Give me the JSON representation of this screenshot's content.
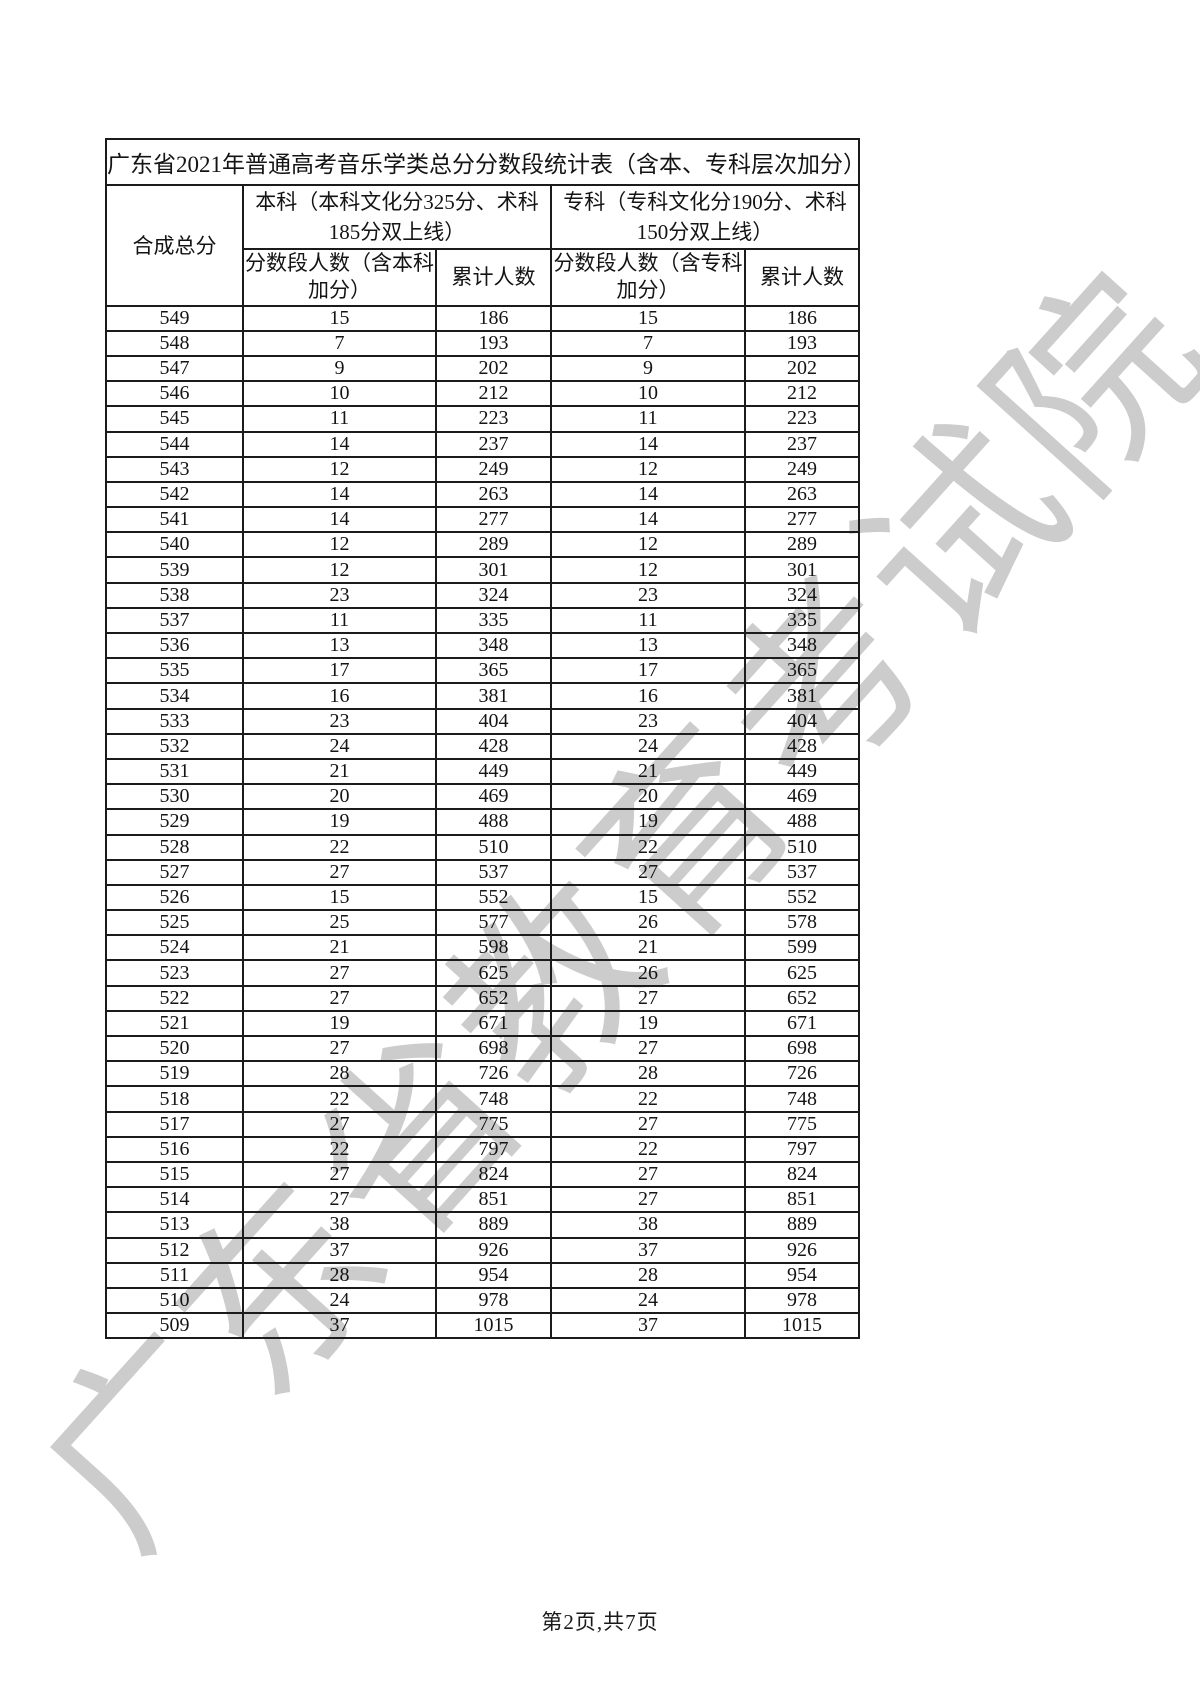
{
  "watermark_text": "广东省教育考试院",
  "footer": {
    "page_label": "第2页,共7页"
  },
  "table": {
    "title": "广东省2021年普通高考音乐学类总分分数段统计表（含本、专科层次加分）",
    "header": {
      "score_col": "合成总分",
      "ben_group": "本科（本科文化分325分、术科185分双上线）",
      "zhuan_group": "专科（专科文化分190分、术科150分双上线）",
      "ben_seg": "分数段人数（含本科加分）",
      "ben_cum": "累计人数",
      "zhuan_seg": "分数段人数（含专科加分）",
      "zhuan_cum": "累计人数"
    },
    "columns_meaning": [
      "合成总分",
      "本科分数段人数(含本科加分)",
      "本科累计人数",
      "专科分数段人数(含专科加分)",
      "专科累计人数"
    ],
    "rows": [
      [
        549,
        15,
        186,
        15,
        186
      ],
      [
        548,
        7,
        193,
        7,
        193
      ],
      [
        547,
        9,
        202,
        9,
        202
      ],
      [
        546,
        10,
        212,
        10,
        212
      ],
      [
        545,
        11,
        223,
        11,
        223
      ],
      [
        544,
        14,
        237,
        14,
        237
      ],
      [
        543,
        12,
        249,
        12,
        249
      ],
      [
        542,
        14,
        263,
        14,
        263
      ],
      [
        541,
        14,
        277,
        14,
        277
      ],
      [
        540,
        12,
        289,
        12,
        289
      ],
      [
        539,
        12,
        301,
        12,
        301
      ],
      [
        538,
        23,
        324,
        23,
        324
      ],
      [
        537,
        11,
        335,
        11,
        335
      ],
      [
        536,
        13,
        348,
        13,
        348
      ],
      [
        535,
        17,
        365,
        17,
        365
      ],
      [
        534,
        16,
        381,
        16,
        381
      ],
      [
        533,
        23,
        404,
        23,
        404
      ],
      [
        532,
        24,
        428,
        24,
        428
      ],
      [
        531,
        21,
        449,
        21,
        449
      ],
      [
        530,
        20,
        469,
        20,
        469
      ],
      [
        529,
        19,
        488,
        19,
        488
      ],
      [
        528,
        22,
        510,
        22,
        510
      ],
      [
        527,
        27,
        537,
        27,
        537
      ],
      [
        526,
        15,
        552,
        15,
        552
      ],
      [
        525,
        25,
        577,
        26,
        578
      ],
      [
        524,
        21,
        598,
        21,
        599
      ],
      [
        523,
        27,
        625,
        26,
        625
      ],
      [
        522,
        27,
        652,
        27,
        652
      ],
      [
        521,
        19,
        671,
        19,
        671
      ],
      [
        520,
        27,
        698,
        27,
        698
      ],
      [
        519,
        28,
        726,
        28,
        726
      ],
      [
        518,
        22,
        748,
        22,
        748
      ],
      [
        517,
        27,
        775,
        27,
        775
      ],
      [
        516,
        22,
        797,
        22,
        797
      ],
      [
        515,
        27,
        824,
        27,
        824
      ],
      [
        514,
        27,
        851,
        27,
        851
      ],
      [
        513,
        38,
        889,
        38,
        889
      ],
      [
        512,
        37,
        926,
        37,
        926
      ],
      [
        511,
        28,
        954,
        28,
        954
      ],
      [
        510,
        24,
        978,
        24,
        978
      ],
      [
        509,
        37,
        1015,
        37,
        1015
      ]
    ]
  }
}
